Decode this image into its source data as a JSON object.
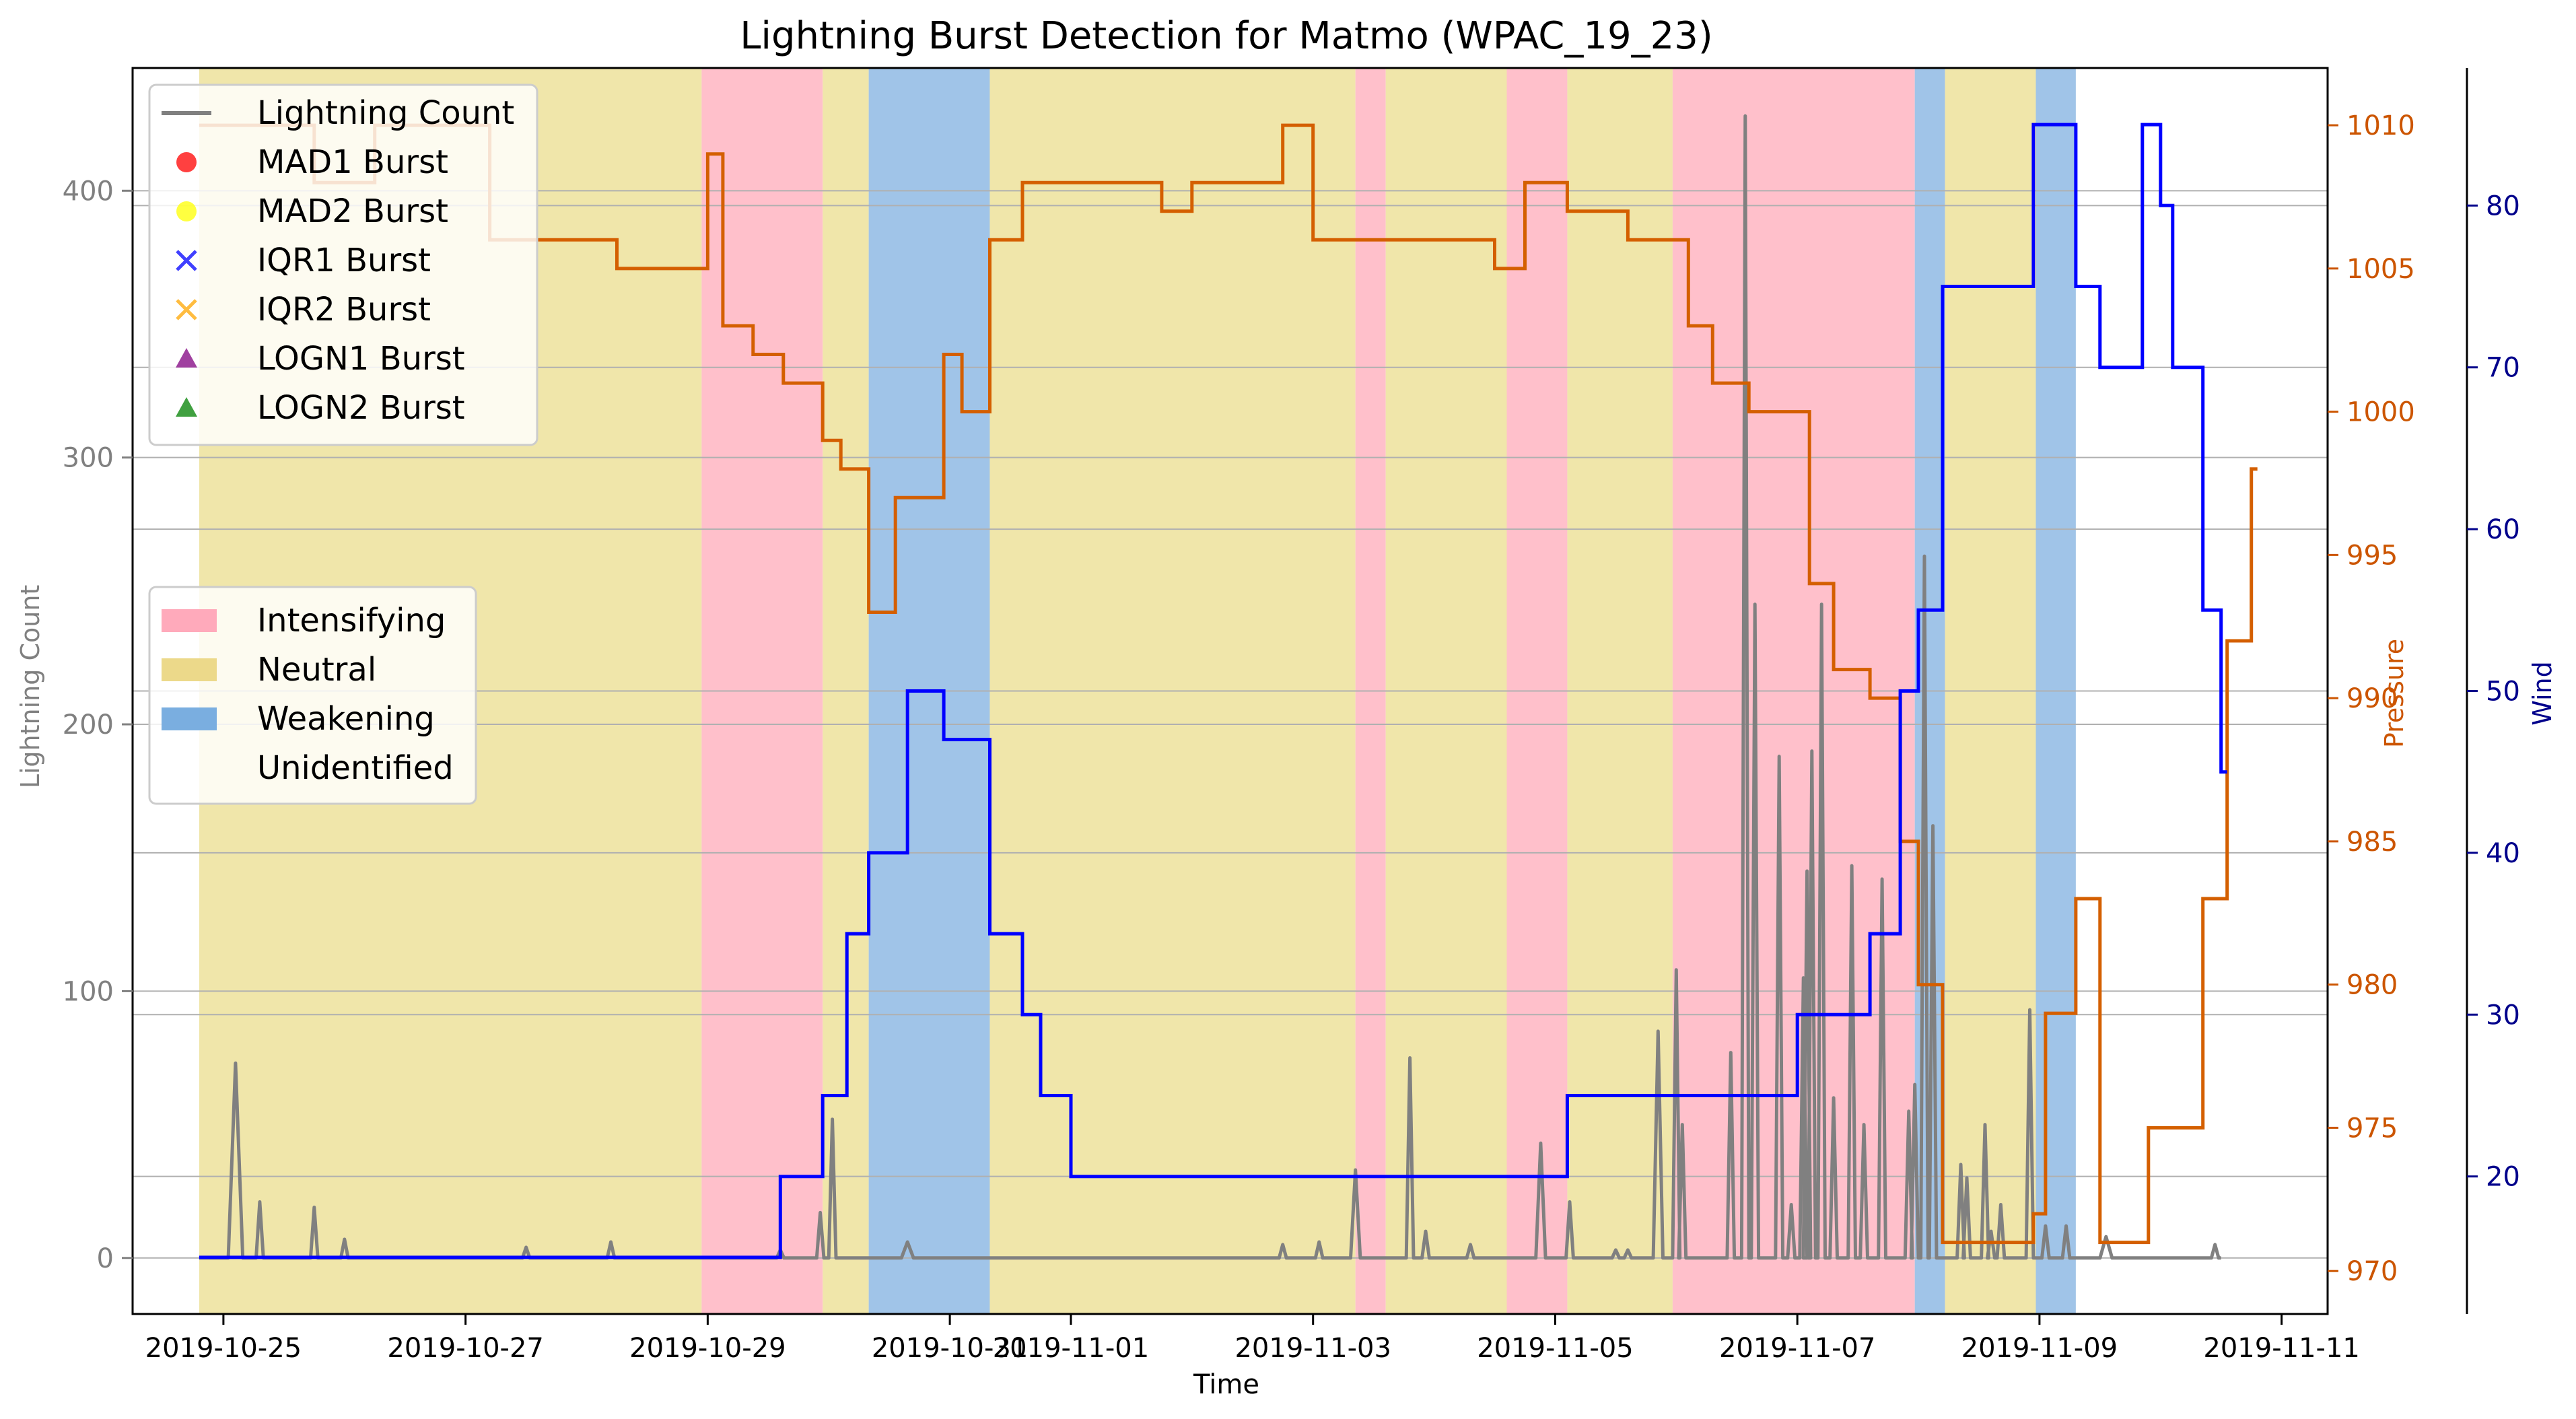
{
  "chart_data": {
    "type": "line",
    "title": "Lightning Burst Detection for Matmo (WPAC_19_23)",
    "xlabel": "Time",
    "ylabel_left": "Lightning Count",
    "ylabel_pressure": "Pressure",
    "ylabel_wind": "Wind",
    "x_range": [
      "2019-10-24 00:00",
      "2019-11-11 00:00"
    ],
    "x_axis_domain_days": [
      -0.75,
      17.38
    ],
    "x_ticks": [
      {
        "day": 0,
        "label": "2019-10-25"
      },
      {
        "day": 2,
        "label": "2019-10-27"
      },
      {
        "day": 4,
        "label": "2019-10-29"
      },
      {
        "day": 6,
        "label": "2019-10-31"
      },
      {
        "day": 7,
        "label": "2019-11-01"
      },
      {
        "day": 9,
        "label": "2019-11-03"
      },
      {
        "day": 11,
        "label": "2019-11-05"
      },
      {
        "day": 13,
        "label": "2019-11-07"
      },
      {
        "day": 15,
        "label": "2019-11-09"
      },
      {
        "day": 17,
        "label": "2019-11-11"
      }
    ],
    "x_origin_date": "2019-10-25",
    "ylim_left": [
      -21,
      446
    ],
    "y_ticks_left": [
      0,
      100,
      200,
      300,
      400
    ],
    "ylim_pressure": [
      968.5,
      1012
    ],
    "y_ticks_pressure": [
      970,
      975,
      980,
      985,
      990,
      995,
      1000,
      1005,
      1010
    ],
    "ylim_wind": [
      11.5,
      88.5
    ],
    "y_ticks_wind": [
      20,
      30,
      40,
      50,
      60,
      70,
      80
    ],
    "colors": {
      "lightning": "#808080",
      "pressure": "#d45f00",
      "wind": "#0000ff",
      "intensifying": "#ffc0cb",
      "neutral": "#f0e6aa",
      "weakening": "#a0c4e8",
      "left_axis": "#808080",
      "pressure_axis": "#cc5500",
      "wind_axis": "#00008b"
    },
    "phases": [
      {
        "start": -0.2,
        "end": 3.95,
        "phase": "Neutral"
      },
      {
        "start": 3.95,
        "end": 4.95,
        "phase": "Intensifying"
      },
      {
        "start": 4.95,
        "end": 5.33,
        "phase": "Neutral"
      },
      {
        "start": 5.33,
        "end": 6.33,
        "phase": "Weakening"
      },
      {
        "start": 6.33,
        "end": 9.35,
        "phase": "Neutral"
      },
      {
        "start": 9.35,
        "end": 9.6,
        "phase": "Intensifying"
      },
      {
        "start": 9.6,
        "end": 10.6,
        "phase": "Neutral"
      },
      {
        "start": 10.6,
        "end": 11.1,
        "phase": "Intensifying"
      },
      {
        "start": 11.1,
        "end": 11.97,
        "phase": "Neutral"
      },
      {
        "start": 11.97,
        "end": 13.97,
        "phase": "Intensifying"
      },
      {
        "start": 13.97,
        "end": 14.22,
        "phase": "Weakening"
      },
      {
        "start": 14.22,
        "end": 14.97,
        "phase": "Neutral"
      },
      {
        "start": 14.97,
        "end": 15.3,
        "phase": "Weakening"
      }
    ],
    "pressure_series": {
      "name": "Pressure",
      "x": [
        -0.2,
        0.75,
        1.25,
        1.75,
        2.2,
        2.75,
        3.25,
        4.0,
        4.125,
        4.375,
        4.625,
        4.95,
        5.1,
        5.33,
        5.55,
        5.95,
        6.1,
        6.33,
        6.6,
        7.75,
        8.0,
        8.75,
        9.0,
        10.25,
        10.5,
        10.75,
        11.1,
        11.6,
        12.1,
        12.3,
        12.6,
        13.0,
        13.1,
        13.3,
        13.6,
        13.85,
        14.0,
        14.2,
        14.95,
        15.05,
        15.3,
        15.5,
        15.9,
        16.0,
        16.35,
        16.55,
        16.75
      ],
      "y": [
        1010,
        1008,
        1010,
        1010,
        1006,
        1006,
        1005,
        1009,
        1003,
        1002,
        1001,
        999,
        998,
        993,
        997,
        1002,
        1000,
        1006,
        1008,
        1007,
        1008,
        1010,
        1006,
        1006,
        1005,
        1008,
        1007,
        1006,
        1003,
        1001,
        1000,
        1000,
        994,
        991,
        990,
        985,
        980,
        971,
        972,
        979,
        983,
        971,
        975,
        975,
        983,
        992,
        998
      ]
    },
    "wind_series": {
      "name": "Wind",
      "x": [
        -0.2,
        3.25,
        4.6,
        4.95,
        5.15,
        5.33,
        5.45,
        5.65,
        5.95,
        6.0,
        6.33,
        6.6,
        6.75,
        7.0,
        10.6,
        10.6,
        10.75,
        11.1,
        11.6,
        12.6,
        13.0,
        13.6,
        13.85,
        14.0,
        14.2,
        14.95,
        15.05,
        15.3,
        15.5,
        15.85,
        16.0,
        16.1,
        16.35
      ],
      "y": [
        15,
        15,
        20,
        25,
        35,
        40,
        40,
        50,
        47,
        47,
        35,
        30,
        25,
        20,
        20,
        20,
        20,
        25,
        25,
        25,
        30,
        35,
        50,
        55,
        75,
        85,
        85,
        75,
        70,
        85,
        80,
        70,
        55
      ]
    },
    "wind_end": {
      "x": 16.5,
      "y": 45
    },
    "lightning_series": {
      "name": "Lightning Count",
      "baseline": 0,
      "peaks": [
        {
          "x": 0.1,
          "y": 73,
          "w": 0.06
        },
        {
          "x": 0.3,
          "y": 21,
          "w": 0.03
        },
        {
          "x": 0.75,
          "y": 19,
          "w": 0.03
        },
        {
          "x": 1.0,
          "y": 7,
          "w": 0.03
        },
        {
          "x": 2.5,
          "y": 4,
          "w": 0.03
        },
        {
          "x": 3.2,
          "y": 6,
          "w": 0.03
        },
        {
          "x": 4.6,
          "y": 3,
          "w": 0.03
        },
        {
          "x": 4.93,
          "y": 17,
          "w": 0.03
        },
        {
          "x": 5.03,
          "y": 52,
          "w": 0.03
        },
        {
          "x": 5.65,
          "y": 6,
          "w": 0.05
        },
        {
          "x": 8.75,
          "y": 5,
          "w": 0.03
        },
        {
          "x": 9.05,
          "y": 6,
          "w": 0.03
        },
        {
          "x": 9.35,
          "y": 33,
          "w": 0.04
        },
        {
          "x": 9.8,
          "y": 75,
          "w": 0.03
        },
        {
          "x": 9.93,
          "y": 10,
          "w": 0.03
        },
        {
          "x": 10.3,
          "y": 5,
          "w": 0.03
        },
        {
          "x": 10.88,
          "y": 43,
          "w": 0.04
        },
        {
          "x": 11.12,
          "y": 21,
          "w": 0.03
        },
        {
          "x": 11.5,
          "y": 3,
          "w": 0.03
        },
        {
          "x": 11.6,
          "y": 3,
          "w": 0.03
        },
        {
          "x": 11.85,
          "y": 85,
          "w": 0.04
        },
        {
          "x": 12.0,
          "y": 108,
          "w": 0.03
        },
        {
          "x": 12.05,
          "y": 50,
          "w": 0.03
        },
        {
          "x": 12.45,
          "y": 77,
          "w": 0.03
        },
        {
          "x": 12.57,
          "y": 428,
          "w": 0.03
        },
        {
          "x": 12.65,
          "y": 245,
          "w": 0.03
        },
        {
          "x": 12.85,
          "y": 188,
          "w": 0.03
        },
        {
          "x": 12.95,
          "y": 20,
          "w": 0.03
        },
        {
          "x": 13.05,
          "y": 105,
          "w": 0.03
        },
        {
          "x": 13.08,
          "y": 145,
          "w": 0.03
        },
        {
          "x": 13.12,
          "y": 190,
          "w": 0.03
        },
        {
          "x": 13.2,
          "y": 245,
          "w": 0.03
        },
        {
          "x": 13.3,
          "y": 60,
          "w": 0.03
        },
        {
          "x": 13.45,
          "y": 147,
          "w": 0.03
        },
        {
          "x": 13.55,
          "y": 50,
          "w": 0.03
        },
        {
          "x": 13.7,
          "y": 142,
          "w": 0.03
        },
        {
          "x": 13.92,
          "y": 55,
          "w": 0.03
        },
        {
          "x": 13.97,
          "y": 65,
          "w": 0.03
        },
        {
          "x": 14.05,
          "y": 263,
          "w": 0.03
        },
        {
          "x": 14.12,
          "y": 162,
          "w": 0.03
        },
        {
          "x": 14.35,
          "y": 35,
          "w": 0.03
        },
        {
          "x": 14.4,
          "y": 30,
          "w": 0.03
        },
        {
          "x": 14.55,
          "y": 50,
          "w": 0.03
        },
        {
          "x": 14.6,
          "y": 10,
          "w": 0.03
        },
        {
          "x": 14.68,
          "y": 20,
          "w": 0.03
        },
        {
          "x": 14.92,
          "y": 93,
          "w": 0.03
        },
        {
          "x": 15.05,
          "y": 12,
          "w": 0.03
        },
        {
          "x": 15.22,
          "y": 12,
          "w": 0.03
        },
        {
          "x": 15.55,
          "y": 8,
          "w": 0.05
        },
        {
          "x": 16.45,
          "y": 5,
          "w": 0.03
        }
      ]
    },
    "legend_lines": [
      {
        "label": "Lightning Count",
        "kind": "line",
        "color": "#808080"
      },
      {
        "label": "MAD1 Burst",
        "kind": "circle",
        "color": "#ff0000"
      },
      {
        "label": "MAD2 Burst",
        "kind": "circle",
        "color": "#ffff00"
      },
      {
        "label": "IQR1 Burst",
        "kind": "x",
        "color": "#0000ff"
      },
      {
        "label": "IQR2 Burst",
        "kind": "x",
        "color": "#ffa500"
      },
      {
        "label": "LOGN1 Burst",
        "kind": "triangle",
        "color": "#800080"
      },
      {
        "label": "LOGN2 Burst",
        "kind": "triangle",
        "color": "#008000"
      }
    ],
    "legend_phases": [
      {
        "label": "Intensifying",
        "color": "#ffaabb"
      },
      {
        "label": "Neutral",
        "color": "#ecd98a"
      },
      {
        "label": "Weakening",
        "color": "#7aaee0"
      },
      {
        "label": "Unidentified",
        "color": "none"
      }
    ]
  }
}
